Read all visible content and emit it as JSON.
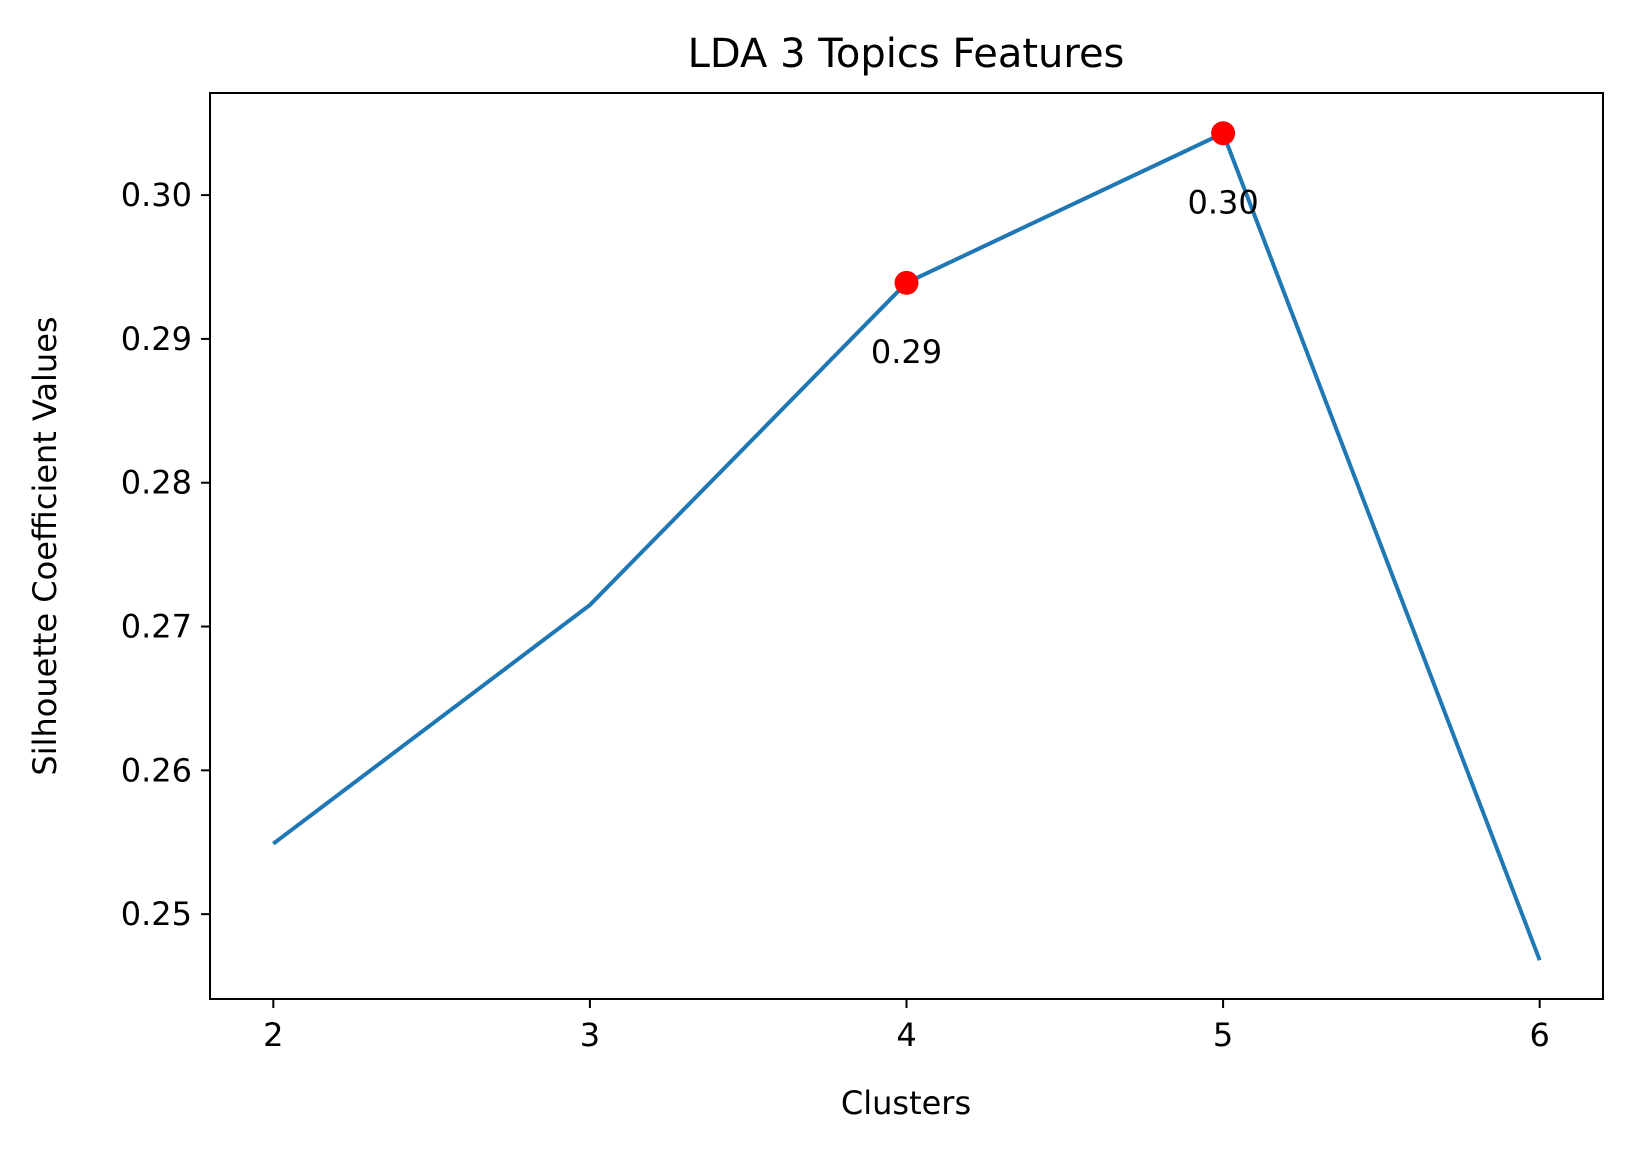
{
  "chart_data": {
    "type": "line",
    "title": "LDA 3 Topics Features",
    "xlabel": "Clusters",
    "ylabel": "Silhouette Coefficient Values",
    "x": [
      2,
      3,
      4,
      5,
      6
    ],
    "series": [
      {
        "values": [
          0.2549,
          0.2715,
          0.2939,
          0.3043,
          0.2468
        ]
      }
    ],
    "highlighted_points": [
      {
        "x": 4,
        "y": 0.2939,
        "label": "0.29"
      },
      {
        "x": 5,
        "y": 0.3043,
        "label": "0.30"
      }
    ],
    "xlim": [
      1.8,
      6.2
    ],
    "ylim": [
      0.2441,
      0.3071
    ],
    "xticks": [
      "2",
      "3",
      "4",
      "5",
      "6"
    ],
    "xtick_values": [
      2,
      3,
      4,
      5,
      6
    ],
    "yticks": [
      "0.25",
      "0.26",
      "0.27",
      "0.28",
      "0.29",
      "0.30"
    ],
    "ytick_values": [
      0.25,
      0.26,
      0.27,
      0.28,
      0.29,
      0.3
    ],
    "grid": false,
    "legend": "none",
    "colors": {
      "line": "#1f77b4",
      "marker": "#ff0000",
      "axes": "#000000"
    }
  }
}
